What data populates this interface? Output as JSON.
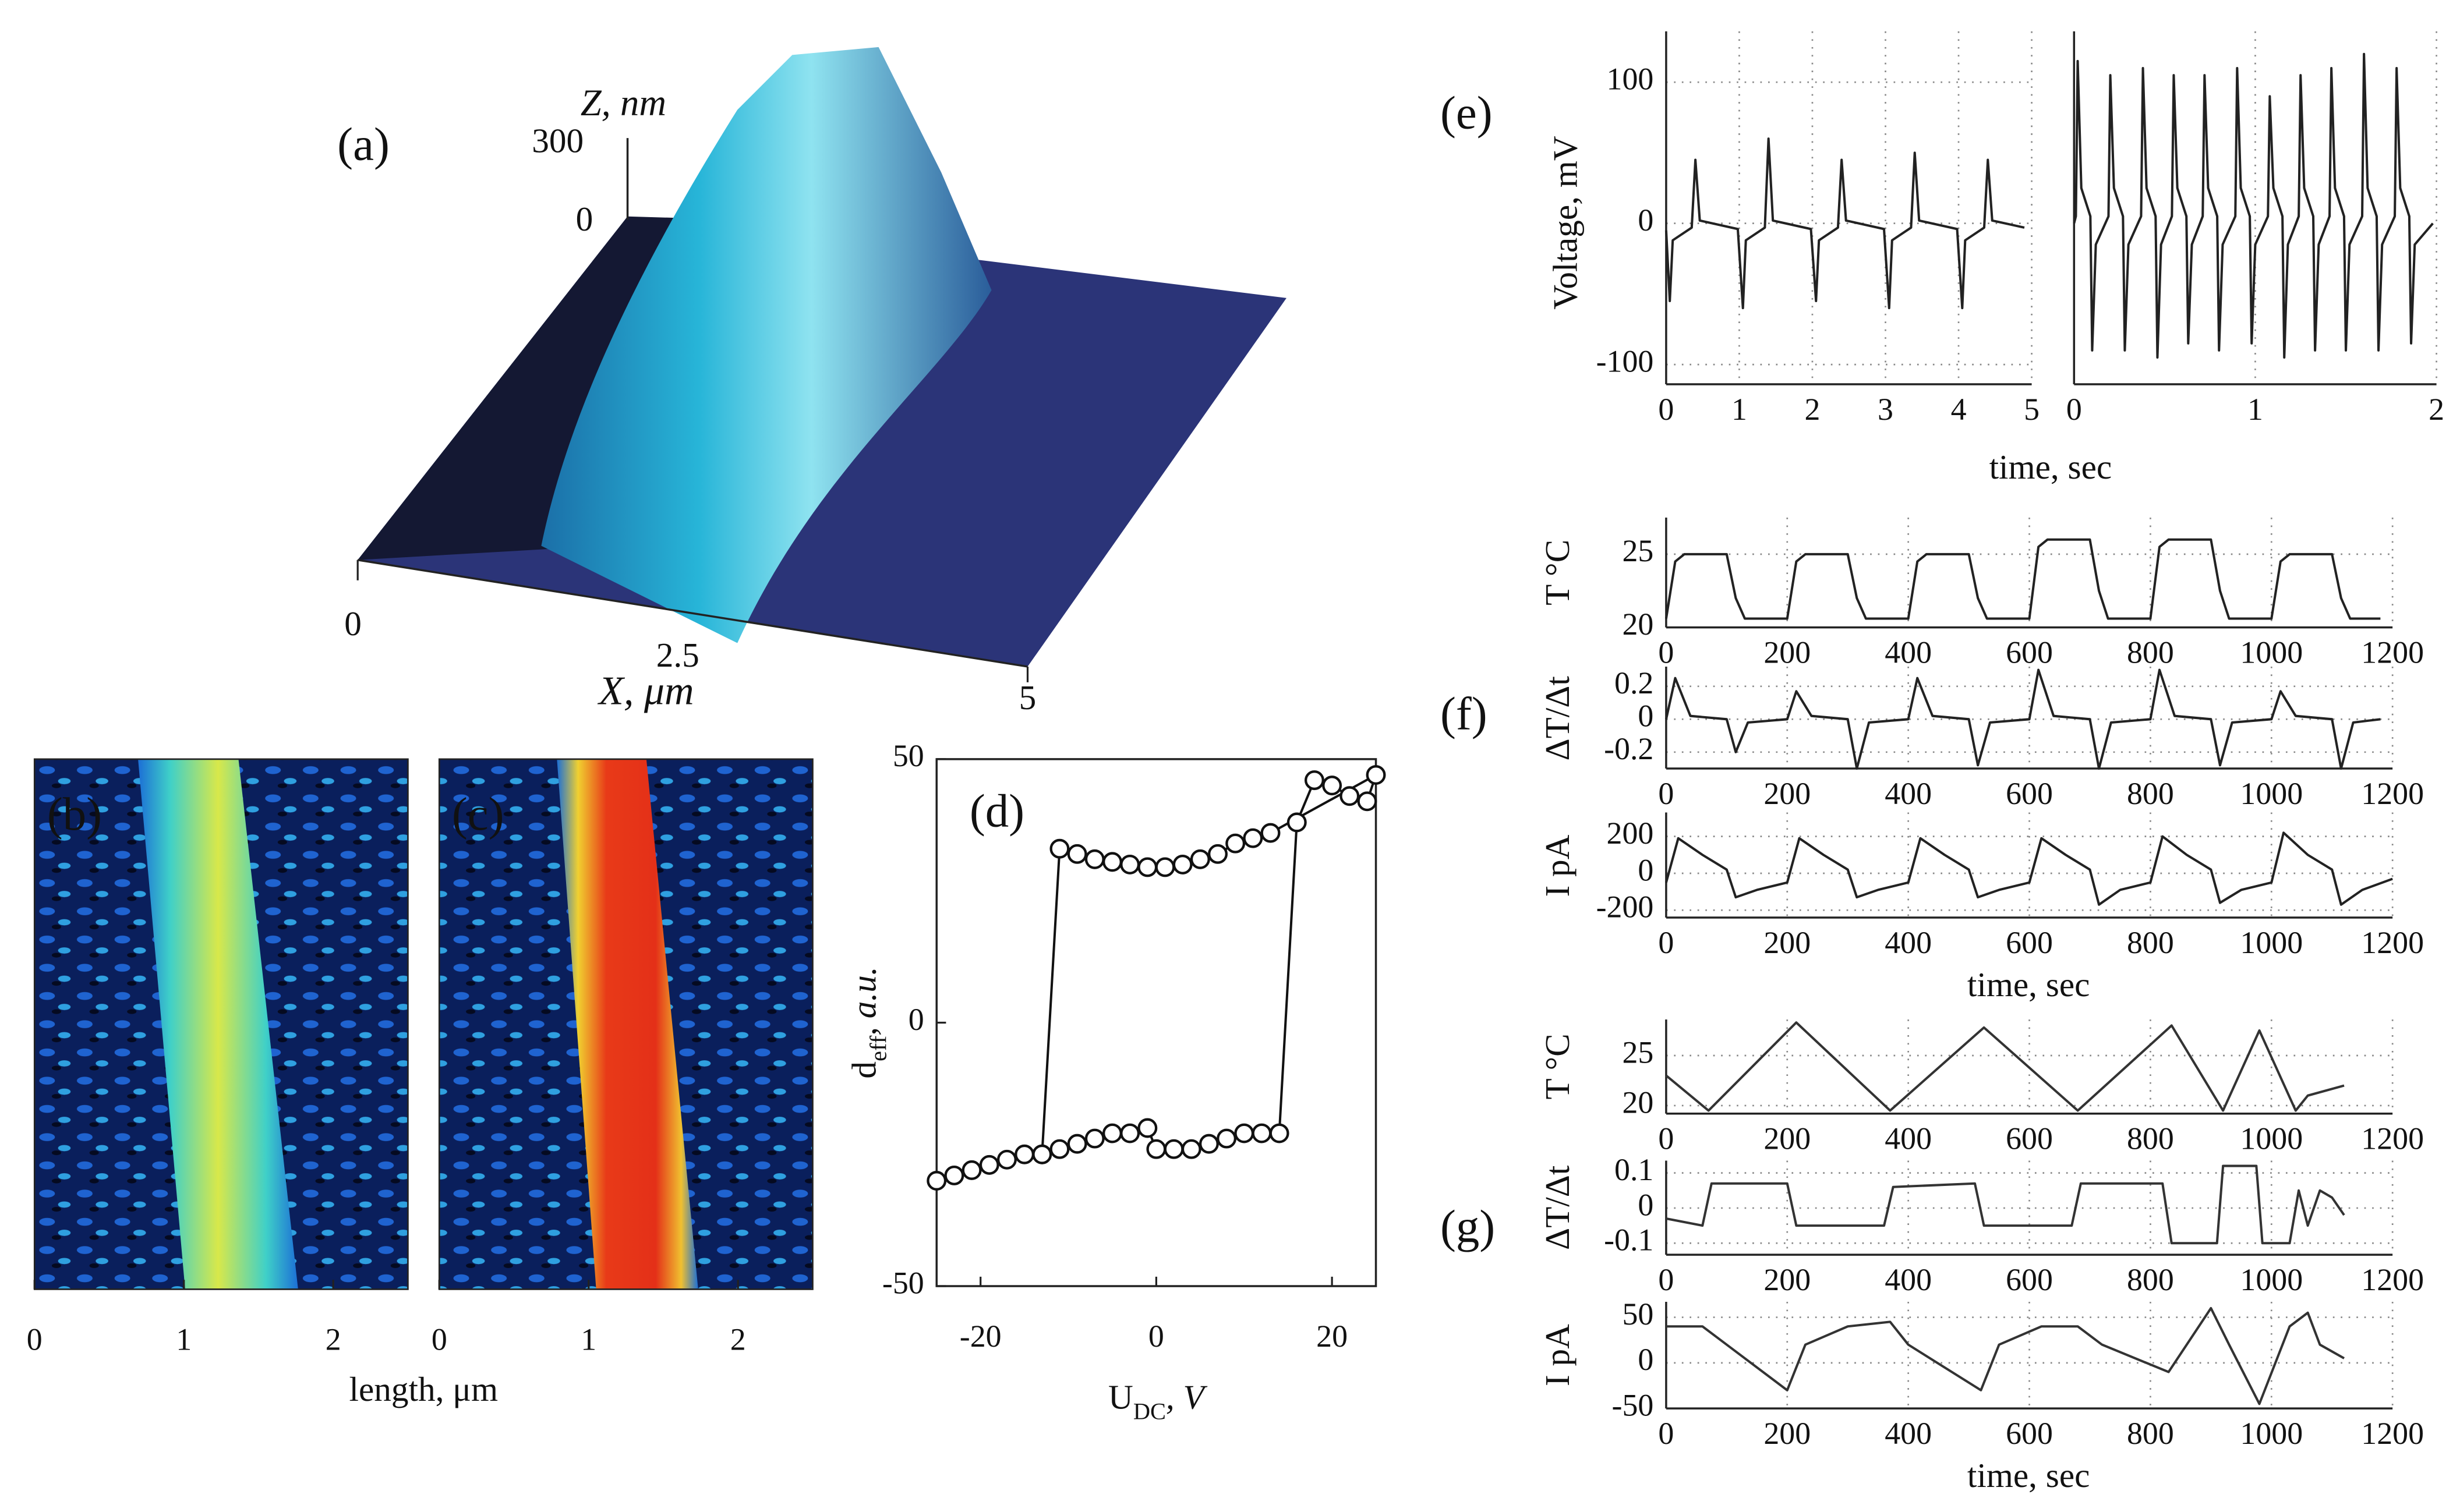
{
  "chart_data": [
    {
      "type": "surface",
      "label": "(a)",
      "zlabel": "Z, nm",
      "zticks": [
        300,
        0
      ],
      "xticks": [
        0,
        2.5,
        5
      ],
      "xlabel": "X, μm"
    },
    {
      "type": "image",
      "label": "(b)",
      "xlim": [
        0,
        2.5
      ],
      "xticks": [
        0,
        1,
        2
      ],
      "xlabel": "length, μm"
    },
    {
      "type": "image",
      "label": "(c)",
      "xlim": [
        0,
        2.5
      ],
      "xticks": [
        0,
        1,
        2
      ]
    },
    {
      "type": "scatter",
      "label": "(d)",
      "xlim": [
        -25,
        25
      ],
      "ylim": [
        -50,
        50
      ],
      "xticks": [
        -20,
        0,
        20
      ],
      "yticks": [
        -50,
        0,
        50
      ],
      "xlabel": [
        "U",
        "DC",
        ", V"
      ],
      "ylabel": [
        "d",
        "eff",
        ", a.u."
      ],
      "color": "#111",
      "x": [
        -25,
        -23,
        -21,
        -19,
        -17,
        -15,
        -13,
        -11,
        -9,
        -7,
        -5,
        -3,
        -1,
        0,
        2,
        4,
        6,
        8,
        10,
        12,
        14,
        16,
        18,
        20,
        22,
        24,
        25,
        13,
        11,
        9,
        7,
        5,
        3,
        1,
        -1,
        -3,
        -5,
        -7,
        -9,
        -11,
        -13
      ],
      "values": [
        -30,
        -29,
        -28,
        -27,
        -26,
        -25,
        -25,
        -24,
        -23,
        -22,
        -21,
        -21,
        -20,
        -24,
        -24,
        -24,
        -23,
        -22,
        -21,
        -21,
        -21,
        38,
        46,
        45,
        43,
        42,
        47,
        36,
        35,
        34,
        32,
        31,
        30,
        29.5,
        29.5,
        30,
        30.5,
        31,
        32,
        33,
        -25
      ]
    },
    {
      "type": "line",
      "label": "(e)",
      "ylabel": "Voltage, mV",
      "xlabel": "time, sec",
      "grid": true,
      "color": "#222",
      "xlim": [
        0,
        5
      ],
      "ylim": [
        -114,
        136
      ],
      "xticks": [
        0,
        1,
        2,
        3,
        4,
        5
      ],
      "yticks": [
        -100,
        0,
        100
      ],
      "x": [
        0,
        0.05,
        0.09,
        0.35,
        0.4,
        0.46,
        0.98,
        1.05,
        1.09,
        1.35,
        1.4,
        1.46,
        1.98,
        2.05,
        2.09,
        2.35,
        2.4,
        2.46,
        2.98,
        3.05,
        3.09,
        3.35,
        3.4,
        3.46,
        3.98,
        4.05,
        4.09,
        4.35,
        4.4,
        4.46,
        4.9
      ],
      "values": [
        -5,
        -55,
        -12,
        -3,
        45,
        2,
        -4,
        -60,
        -12,
        -3,
        60,
        2,
        -4,
        -55,
        -12,
        -3,
        45,
        2,
        -4,
        -60,
        -12,
        -3,
        50,
        2,
        -4,
        -60,
        -12,
        -3,
        45,
        2,
        -3
      ]
    },
    {
      "type": "line",
      "grid": true,
      "color": "#222",
      "xlim": [
        0,
        2
      ],
      "ylim": [
        -114,
        136
      ],
      "xticks": [
        0,
        1,
        2
      ],
      "x": [
        0,
        0.01,
        0.02,
        0.04,
        0.09,
        0.1,
        0.12,
        0.19,
        0.2,
        0.22,
        0.27,
        0.28,
        0.3,
        0.37,
        0.38,
        0.4,
        0.45,
        0.46,
        0.48,
        0.54,
        0.55,
        0.57,
        0.62,
        0.63,
        0.65,
        0.71,
        0.72,
        0.74,
        0.79,
        0.8,
        0.82,
        0.89,
        0.9,
        0.92,
        0.97,
        0.98,
        1.0,
        1.07,
        1.08,
        1.1,
        1.15,
        1.16,
        1.18,
        1.24,
        1.25,
        1.27,
        1.32,
        1.33,
        1.35,
        1.41,
        1.42,
        1.44,
        1.49,
        1.5,
        1.52,
        1.59,
        1.6,
        1.62,
        1.67,
        1.68,
        1.7,
        1.77,
        1.78,
        1.8,
        1.85,
        1.86,
        1.88,
        1.98
      ],
      "values": [
        0,
        5,
        115,
        25,
        5,
        -90,
        -15,
        5,
        105,
        25,
        5,
        -90,
        -15,
        5,
        110,
        25,
        5,
        -95,
        -15,
        5,
        105,
        25,
        5,
        -85,
        -15,
        5,
        105,
        25,
        5,
        -90,
        -15,
        5,
        110,
        25,
        5,
        -85,
        -15,
        5,
        90,
        25,
        5,
        -95,
        -15,
        5,
        105,
        25,
        5,
        -90,
        -15,
        5,
        110,
        25,
        5,
        -90,
        -15,
        5,
        120,
        25,
        5,
        -90,
        -15,
        5,
        110,
        25,
        5,
        -85,
        -15,
        0
      ]
    },
    {
      "type": "line",
      "ylabel": "T °C",
      "grid": true,
      "color": "#222",
      "xlim": [
        0,
        1200
      ],
      "ylim": [
        20,
        27.5
      ],
      "xticks": [
        0,
        200,
        400,
        600,
        800,
        1000,
        1200
      ],
      "yticks": [
        20,
        25
      ],
      "x": [
        0,
        15,
        30,
        100,
        115,
        130,
        200,
        215,
        230,
        300,
        315,
        330,
        400,
        415,
        430,
        500,
        515,
        530,
        600,
        615,
        630,
        700,
        715,
        730,
        800,
        815,
        830,
        900,
        915,
        930,
        1000,
        1015,
        1030,
        1100,
        1115,
        1130,
        1180
      ],
      "values": [
        20.6,
        24.5,
        25,
        25,
        22,
        20.6,
        20.6,
        24.5,
        25,
        25,
        22,
        20.6,
        20.6,
        24.5,
        25,
        25,
        22,
        20.6,
        20.6,
        25.5,
        26,
        26,
        22.5,
        20.6,
        20.6,
        25.5,
        26,
        26,
        22.5,
        20.6,
        20.6,
        24.5,
        25,
        25,
        22,
        20.6,
        20.6
      ]
    },
    {
      "type": "line",
      "label": "(f)",
      "ylabel": "ΔT/Δt",
      "grid": true,
      "color": "#222",
      "xlim": [
        0,
        1200
      ],
      "ylim": [
        -0.3,
        0.32
      ],
      "xticks": [
        0,
        200,
        400,
        600,
        800,
        1000,
        1200
      ],
      "yticks": [
        -0.2,
        0,
        0.2
      ],
      "x": [
        0,
        15,
        40,
        100,
        115,
        135,
        200,
        215,
        240,
        300,
        315,
        335,
        400,
        415,
        440,
        500,
        515,
        535,
        600,
        615,
        640,
        700,
        715,
        735,
        800,
        815,
        840,
        900,
        915,
        935,
        1000,
        1015,
        1040,
        1100,
        1115,
        1135,
        1180
      ],
      "values": [
        0,
        0.25,
        0.02,
        0,
        -0.2,
        -0.02,
        0,
        0.17,
        0.02,
        0,
        -0.3,
        -0.02,
        0,
        0.25,
        0.02,
        0,
        -0.28,
        -0.02,
        0,
        0.3,
        0.02,
        0,
        -0.3,
        -0.02,
        0,
        0.3,
        0.02,
        0,
        -0.28,
        -0.02,
        0,
        0.17,
        0.02,
        0,
        -0.3,
        -0.02,
        0
      ]
    },
    {
      "type": "line",
      "ylabel": "I pA",
      "xlabel": "time, sec",
      "grid": true,
      "color": "#222",
      "xlim": [
        0,
        1200
      ],
      "ylim": [
        -240,
        330
      ],
      "xticks": [
        0,
        200,
        400,
        600,
        800,
        1000,
        1200
      ],
      "yticks": [
        -200,
        0,
        200
      ],
      "x": [
        0,
        20,
        60,
        100,
        115,
        150,
        200,
        220,
        260,
        300,
        315,
        350,
        400,
        420,
        460,
        500,
        515,
        550,
        600,
        620,
        660,
        700,
        715,
        750,
        800,
        820,
        860,
        900,
        915,
        950,
        1000,
        1020,
        1060,
        1100,
        1115,
        1150,
        1200
      ],
      "values": [
        -50,
        190,
        100,
        20,
        -130,
        -90,
        -50,
        190,
        100,
        20,
        -130,
        -90,
        -50,
        190,
        100,
        20,
        -130,
        -90,
        -50,
        190,
        100,
        20,
        -170,
        -90,
        -50,
        200,
        100,
        20,
        -160,
        -90,
        -50,
        220,
        100,
        20,
        -170,
        -90,
        -30
      ]
    },
    {
      "type": "line",
      "ylabel": "T °C",
      "grid": true,
      "color": "#333",
      "xlim": [
        0,
        1200
      ],
      "ylim": [
        19.2,
        28.6
      ],
      "xticks": [
        0,
        200,
        400,
        600,
        800,
        1000,
        1200
      ],
      "yticks": [
        20,
        25
      ],
      "x": [
        0,
        70,
        215,
        370,
        525,
        680,
        835,
        920,
        980,
        1040,
        1060,
        1120
      ],
      "values": [
        23,
        19.5,
        28.3,
        19.5,
        27.8,
        19.5,
        28,
        19.5,
        27.5,
        19.5,
        21,
        22
      ]
    },
    {
      "type": "line",
      "label": "(g)",
      "ylabel": "ΔT/Δt",
      "grid": true,
      "color": "#333",
      "xlim": [
        0,
        1200
      ],
      "ylim": [
        -0.133,
        0.135
      ],
      "xticks": [
        0,
        200,
        400,
        600,
        800,
        1000,
        1200
      ],
      "yticks": [
        -0.1,
        0,
        0.1
      ],
      "x": [
        0,
        60,
        75,
        200,
        215,
        360,
        375,
        510,
        525,
        670,
        685,
        820,
        835,
        910,
        920,
        975,
        985,
        1030,
        1045,
        1060,
        1080,
        1100,
        1120
      ],
      "values": [
        -0.03,
        -0.05,
        0.07,
        0.07,
        -0.05,
        -0.05,
        0.06,
        0.07,
        -0.05,
        -0.05,
        0.07,
        0.07,
        -0.1,
        -0.1,
        0.12,
        0.12,
        -0.1,
        -0.1,
        0.05,
        -0.05,
        0.05,
        0.03,
        -0.02
      ]
    },
    {
      "type": "line",
      "ylabel": "I pA",
      "xlabel": "time, sec",
      "grid": true,
      "color": "#333",
      "xlim": [
        0,
        1200
      ],
      "ylim": [
        -50,
        67
      ],
      "xticks": [
        0,
        200,
        400,
        600,
        800,
        1000,
        1200
      ],
      "yticks": [
        -50,
        0,
        50
      ],
      "x": [
        0,
        60,
        100,
        200,
        230,
        300,
        370,
        400,
        520,
        550,
        620,
        680,
        720,
        830,
        900,
        930,
        980,
        1030,
        1060,
        1080,
        1120
      ],
      "values": [
        40,
        40,
        20,
        -30,
        20,
        40,
        45,
        20,
        -30,
        20,
        40,
        40,
        20,
        -10,
        60,
        20,
        -45,
        40,
        55,
        20,
        5
      ]
    }
  ]
}
